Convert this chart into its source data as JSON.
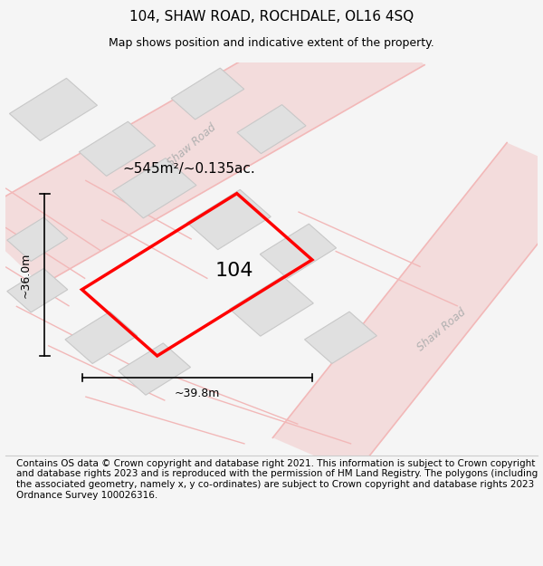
{
  "title": "104, SHAW ROAD, ROCHDALE, OL16 4SQ",
  "subtitle": "Map shows position and indicative extent of the property.",
  "footer": "Contains OS data © Crown copyright and database right 2021. This information is subject to Crown copyright and database rights 2023 and is reproduced with the permission of HM Land Registry. The polygons (including the associated geometry, namely x, y co-ordinates) are subject to Crown copyright and database rights 2023 Ordnance Survey 100026316.",
  "background_color": "#f5f5f5",
  "map_background": "#ffffff",
  "plot_number": "104",
  "area_label": "~545m²/~0.135ac.",
  "width_label": "~39.8m",
  "height_label": "~36.0m",
  "road_color": "#f2b8b8",
  "road_label_color": "#b0b0b0",
  "building_fill": "#e0e0e0",
  "building_edge": "#c8c8c8",
  "highlight_color": "#ff0000",
  "title_fontsize": 11,
  "subtitle_fontsize": 9,
  "footer_fontsize": 7.5,
  "map_border_color": "#cccccc"
}
